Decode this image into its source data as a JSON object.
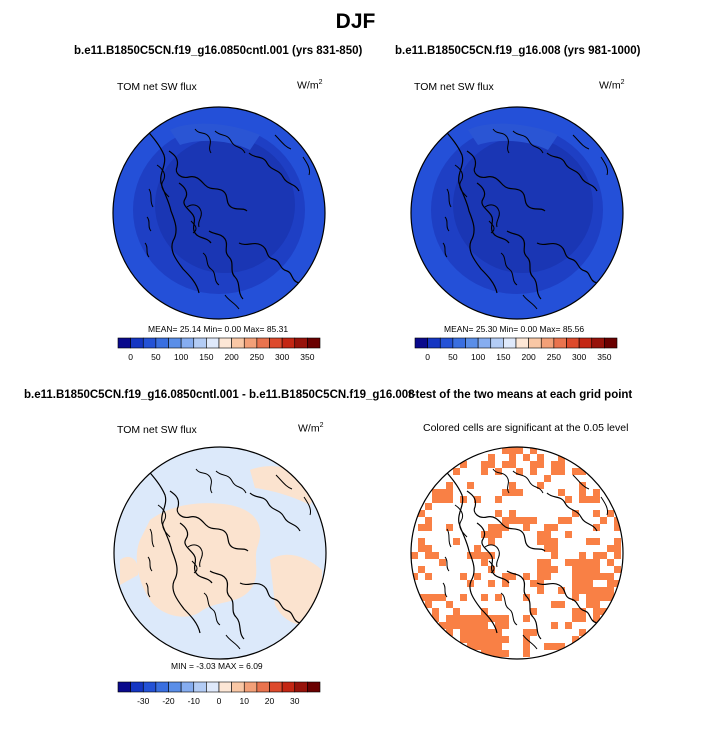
{
  "figure": {
    "title": "DJF"
  },
  "panels": [
    {
      "id": "case1",
      "title": "b.e11.B1850C5CN.f19_g16.0850cntl.001 (yrs 831-850)",
      "variable": "TOM net SW flux",
      "units": "W/m",
      "units_sup": "2",
      "stats": "MEAN= 25.14  Min=  0.00  Max= 85.31"
    },
    {
      "id": "case2",
      "title": "b.e11.B1850C5CN.f19_g16.008 (yrs 981-1000)",
      "variable": "TOM net SW flux",
      "units": "W/m",
      "units_sup": "2",
      "stats": "MEAN= 25.30  Min=  0.00  Max= 85.56"
    },
    {
      "id": "diff",
      "title": "b.e11.B1850C5CN.f19_g16.0850cntl.001 - b.e11.B1850C5CN.f19_g16.008",
      "variable": "TOM net SW flux",
      "units": "W/m",
      "units_sup": "2",
      "stats": "MIN =  -3.03 MAX =   6.09"
    },
    {
      "id": "ttest",
      "title": "t-test of the two means at each grid point",
      "subtitle": "Colored cells are significant at the 0.05 level"
    }
  ],
  "colorbar_abs": {
    "labels": [
      "0",
      "50",
      "100",
      "150",
      "200",
      "250",
      "300",
      "350"
    ],
    "colors": [
      "#0a0a8c",
      "#1536c2",
      "#2452d6",
      "#3a6fe0",
      "#5a8ee8",
      "#86adf0",
      "#b3ccf5",
      "#dfe9fb",
      "#fde7d6",
      "#f9c7a5",
      "#f3a078",
      "#e9734e",
      "#dd4a2c",
      "#c42613",
      "#97120a",
      "#6a0000"
    ]
  },
  "colorbar_diff": {
    "labels": [
      "-30",
      "-20",
      "-10",
      "0",
      "10",
      "20",
      "30"
    ],
    "colors": [
      "#0a0a8c",
      "#1536c2",
      "#2452d6",
      "#3a6fe0",
      "#5a8ee8",
      "#86adf0",
      "#b3ccf5",
      "#dfe9fb",
      "#fde7d6",
      "#f9c7a5",
      "#f3a078",
      "#e9734e",
      "#dd4a2c",
      "#c42613",
      "#97120a",
      "#6a0000"
    ]
  },
  "colors": {
    "ocean_blue": "#2450d8",
    "polar_blue": "#1e3fc4",
    "arctic_core": "#1a36b4",
    "diff_blue": "#dce9fa",
    "diff_orange": "#fbe3cf",
    "significant": "#f98045"
  }
}
